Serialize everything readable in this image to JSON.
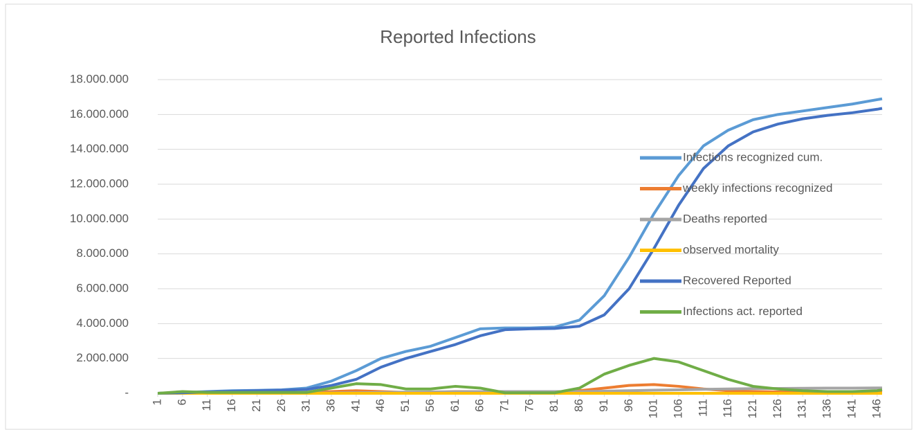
{
  "chart_data": {
    "type": "line",
    "title": "Reported Infections",
    "x": [
      1,
      6,
      11,
      16,
      21,
      26,
      31,
      36,
      41,
      46,
      51,
      56,
      61,
      66,
      71,
      76,
      81,
      86,
      91,
      96,
      101,
      106,
      111,
      116,
      121,
      126,
      131,
      136,
      141,
      146,
      147
    ],
    "xlim": [
      1,
      147
    ],
    "xticks": [
      1,
      6,
      11,
      16,
      21,
      26,
      31,
      36,
      41,
      46,
      51,
      56,
      61,
      66,
      71,
      76,
      81,
      86,
      91,
      96,
      101,
      106,
      111,
      116,
      121,
      126,
      131,
      136,
      141,
      146
    ],
    "ylim": [
      0,
      18000000
    ],
    "yticks": [
      {
        "value": 0,
        "label": "-"
      },
      {
        "value": 2000000,
        "label": "2.000.000"
      },
      {
        "value": 4000000,
        "label": "4.000.000"
      },
      {
        "value": 6000000,
        "label": "6.000.000"
      },
      {
        "value": 8000000,
        "label": "8.000.000"
      },
      {
        "value": 10000000,
        "label": "10.000.000"
      },
      {
        "value": 12000000,
        "label": "12.000.000"
      },
      {
        "value": 14000000,
        "label": "14.000.000"
      },
      {
        "value": 16000000,
        "label": "16.000.000"
      },
      {
        "value": 18000000,
        "label": "18.000.000"
      }
    ],
    "grid": true,
    "legend": "right",
    "series": [
      {
        "name": "Infections recognized cum.",
        "color": "#5b9bd5",
        "values": [
          0,
          50000,
          100000,
          150000,
          170000,
          200000,
          300000,
          700000,
          1300000,
          2000000,
          2400000,
          2700000,
          3200000,
          3700000,
          3750000,
          3750000,
          3800000,
          4200000,
          5600000,
          7800000,
          10300000,
          12500000,
          14200000,
          15100000,
          15700000,
          16000000,
          16200000,
          16400000,
          16600000,
          16850000,
          16900000
        ]
      },
      {
        "name": "weekly infections recognized",
        "color": "#ed7d31",
        "values": [
          0,
          20000,
          30000,
          30000,
          30000,
          30000,
          50000,
          100000,
          150000,
          100000,
          50000,
          50000,
          100000,
          100000,
          20000,
          20000,
          20000,
          150000,
          300000,
          450000,
          500000,
          400000,
          250000,
          150000,
          100000,
          80000,
          60000,
          50000,
          50000,
          70000,
          80000
        ]
      },
      {
        "name": "Deaths reported",
        "color": "#a5a5a5",
        "values": [
          0,
          0,
          0,
          0,
          10000,
          10000,
          10000,
          20000,
          30000,
          50000,
          70000,
          80000,
          90000,
          100000,
          100000,
          100000,
          100000,
          100000,
          120000,
          150000,
          180000,
          200000,
          230000,
          250000,
          270000,
          280000,
          290000,
          300000,
          300000,
          310000,
          310000
        ]
      },
      {
        "name": "observed mortality",
        "color": "#ffc000",
        "values": [
          0,
          0,
          0,
          0,
          0,
          0,
          0,
          0,
          0,
          0,
          0,
          0,
          0,
          0,
          0,
          0,
          0,
          0,
          0,
          0,
          0,
          0,
          0,
          0,
          0,
          0,
          0,
          0,
          0,
          0,
          0
        ]
      },
      {
        "name": "Recovered Reported",
        "color": "#4472c4",
        "values": [
          0,
          30000,
          80000,
          120000,
          150000,
          180000,
          220000,
          450000,
          800000,
          1500000,
          2000000,
          2400000,
          2800000,
          3300000,
          3650000,
          3700000,
          3720000,
          3850000,
          4500000,
          6000000,
          8300000,
          10800000,
          12900000,
          14200000,
          15000000,
          15450000,
          15750000,
          15950000,
          16100000,
          16300000,
          16350000
        ]
      },
      {
        "name": "Infections act. reported",
        "color": "#70ad47",
        "values": [
          0,
          100000,
          50000,
          50000,
          50000,
          50000,
          50000,
          300000,
          550000,
          500000,
          250000,
          250000,
          400000,
          300000,
          30000,
          30000,
          30000,
          300000,
          1100000,
          1600000,
          2000000,
          1800000,
          1300000,
          800000,
          400000,
          250000,
          150000,
          100000,
          100000,
          150000,
          200000
        ]
      }
    ]
  }
}
